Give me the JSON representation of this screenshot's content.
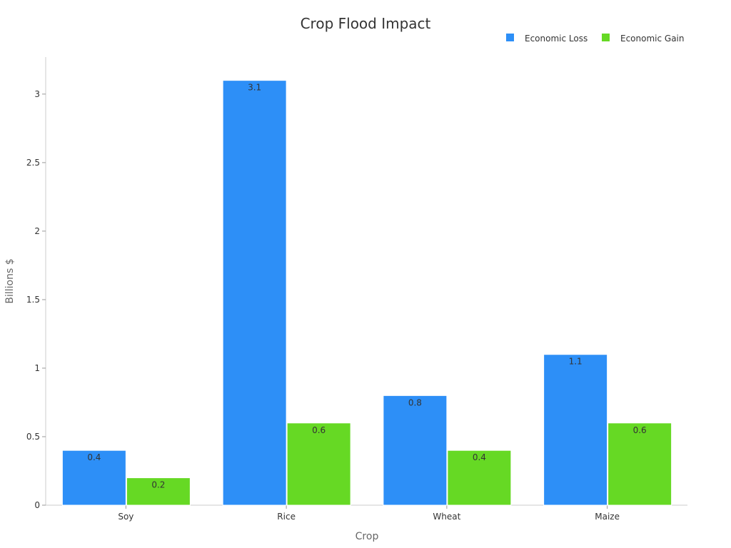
{
  "chart_data": {
    "type": "bar",
    "title": "Crop Flood Impact",
    "xlabel": "Crop",
    "ylabel": "Billions $",
    "categories": [
      "Soy",
      "Rice",
      "Wheat",
      "Maize"
    ],
    "series": [
      {
        "name": "Economic Loss",
        "color": "#2d8ff7",
        "values": [
          0.4,
          3.1,
          0.8,
          1.1
        ]
      },
      {
        "name": "Economic Gain",
        "color": "#66d924",
        "values": [
          0.2,
          0.6,
          0.4,
          0.6
        ]
      }
    ],
    "yticks": [
      "0",
      "0.5",
      "1",
      "1.5",
      "2",
      "2.5",
      "3"
    ],
    "ylim": [
      0,
      3.27
    ],
    "grid": false,
    "legend": "top-right",
    "data_labels": true
  }
}
